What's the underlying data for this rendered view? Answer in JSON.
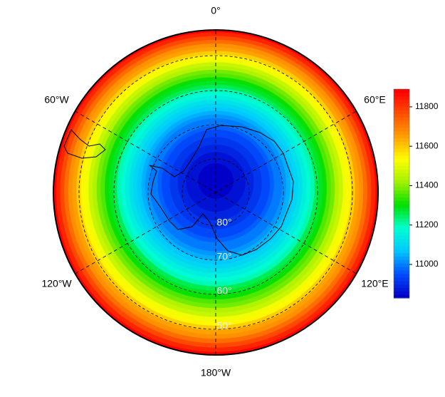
{
  "map": {
    "projection": "south-polar-stereographic",
    "longitude_labels": [
      "0°",
      "60°E",
      "120°E",
      "180°W",
      "120°W",
      "60°W"
    ],
    "latitude_labels": [
      "80°",
      "70°",
      "60°",
      "50°"
    ],
    "colorbar": {
      "lim": [
        10830,
        11890
      ],
      "ticks": [
        11000,
        11200,
        11400,
        11600,
        11800
      ],
      "colormap": [
        "#0000c8",
        "#0050ff",
        "#00c8ff",
        "#00ffd0",
        "#00e000",
        "#a0f000",
        "#ffff00",
        "#ffa000",
        "#ff5000",
        "#ff0000"
      ]
    }
  }
}
